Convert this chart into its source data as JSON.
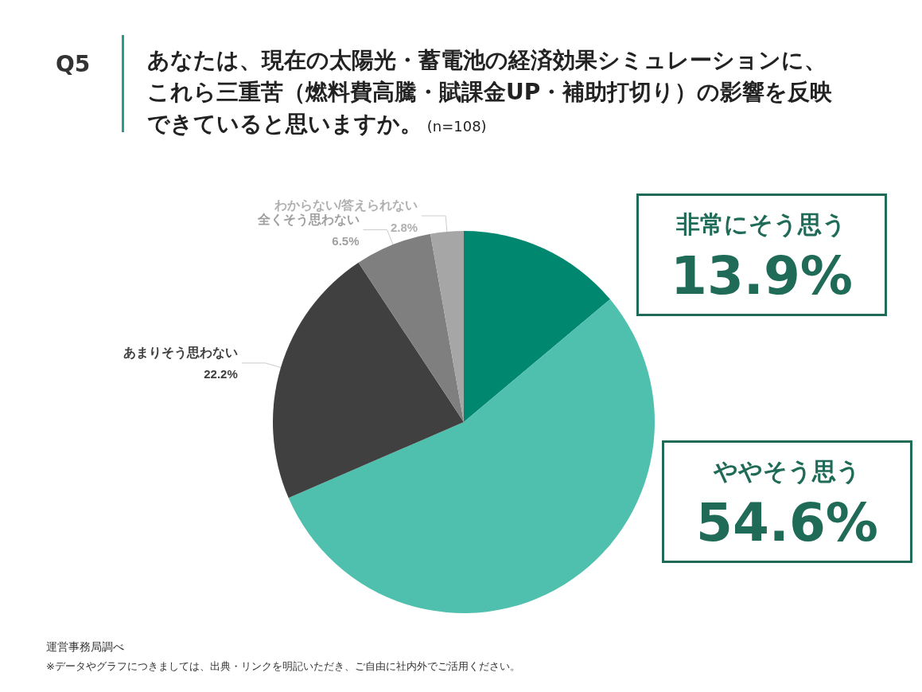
{
  "chart_data": {
    "type": "pie",
    "title": "あなたは、現在の太陽光・蓄電池の経済効果シミュレーションに、これら三重苦（燃料費高騰・賦課金UP・補助打切り）の影響を反映できていると思いますか。",
    "subtitle": "(n=108)",
    "categories": [
      "非常にそう思う",
      "ややそう思う",
      "あまりそう思わない",
      "全くそう思わない",
      "わからない/答えられない"
    ],
    "values": [
      13.9,
      54.6,
      22.2,
      6.5,
      2.8
    ],
    "colors": [
      "#00876f",
      "#4fbfae",
      "#404040",
      "#7f7f7f",
      "#a6a6a6"
    ],
    "value_labels": [
      "13.9%",
      "54.6%",
      "22.2%",
      "6.5%",
      "2.8%"
    ],
    "legend": false,
    "annotations": [
      "Q5",
      "運営事務局調べ",
      "※データやグラフにつきましては、出典・リンクを明記いただき、ご自由に社内外でご活用ください。"
    ]
  }
}
